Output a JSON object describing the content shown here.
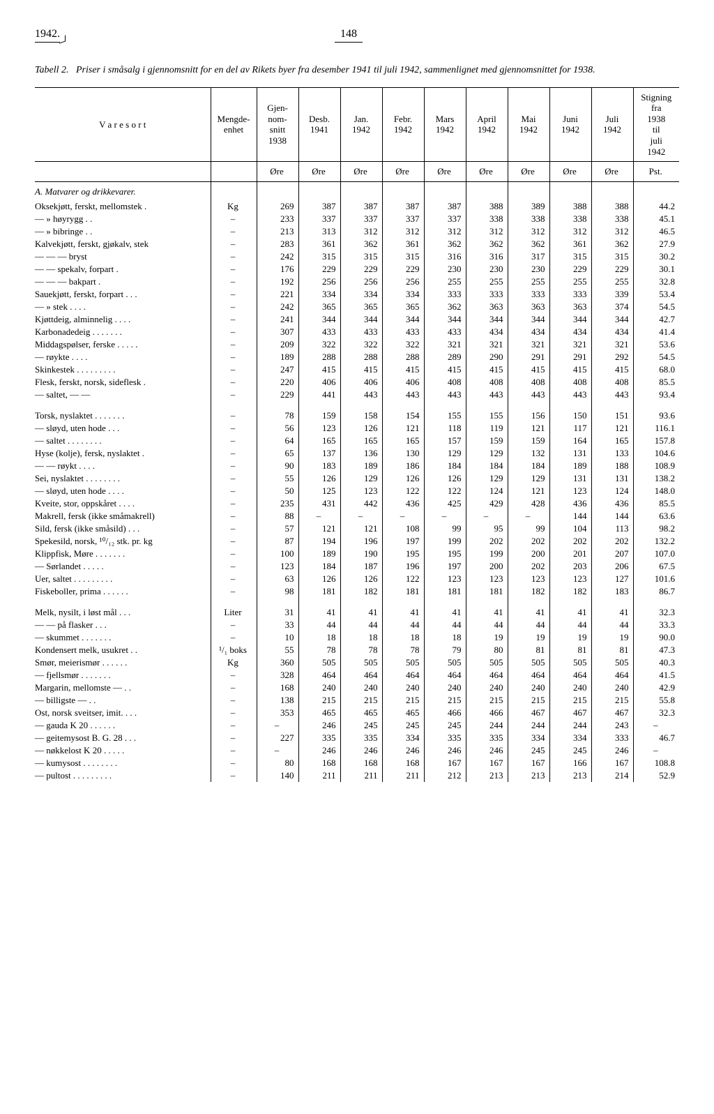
{
  "page": {
    "year": "1942.",
    "number": "148"
  },
  "caption": {
    "label": "Tabell 2.",
    "text": "Priser i småsalg i gjennomsnitt for en del av Rikets byer fra desember 1941 til juli 1942, sammenlignet med gjennomsnittet for 1938."
  },
  "columns": [
    "V a r e s o r t",
    "Mengde-\nenhet",
    "Gjen-\nnom-\nsnitt\n1938",
    "Desb.\n1941",
    "Jan.\n1942",
    "Febr.\n1942",
    "Mars\n1942",
    "April\n1942",
    "Mai\n1942",
    "Juni\n1942",
    "Juli\n1942",
    "Stigning\nfra\n1938\ntil\njuli\n1942"
  ],
  "unit_row": [
    "",
    "",
    "Øre",
    "Øre",
    "Øre",
    "Øre",
    "Øre",
    "Øre",
    "Øre",
    "Øre",
    "Øre",
    "Pst."
  ],
  "section_a": "A. Matvarer og drikkevarer.",
  "rows_block1": [
    [
      "Oksekjøtt, ferskt, mellomstek .",
      "Kg",
      "269",
      "387",
      "387",
      "387",
      "387",
      "388",
      "389",
      "388",
      "388",
      "44.2"
    ],
    [
      "—      »      høyrygg . .",
      "–",
      "233",
      "337",
      "337",
      "337",
      "337",
      "338",
      "338",
      "338",
      "338",
      "45.1"
    ],
    [
      "—      »      bibringe . .",
      "–",
      "213",
      "313",
      "312",
      "312",
      "312",
      "312",
      "312",
      "312",
      "312",
      "46.5"
    ],
    [
      "Kalvekjøtt, ferskt, gjøkalv, stek",
      "–",
      "283",
      "361",
      "362",
      "361",
      "362",
      "362",
      "362",
      "361",
      "362",
      "27.9"
    ],
    [
      "—      —      —      bryst",
      "–",
      "242",
      "315",
      "315",
      "315",
      "316",
      "316",
      "317",
      "315",
      "315",
      "30.2"
    ],
    [
      "—      — spekalv, forpart .",
      "–",
      "176",
      "229",
      "229",
      "229",
      "230",
      "230",
      "230",
      "229",
      "229",
      "30.1"
    ],
    [
      "—      —      —   bakpart .",
      "–",
      "192",
      "256",
      "256",
      "256",
      "255",
      "255",
      "255",
      "255",
      "255",
      "32.8"
    ],
    [
      "Sauekjøtt, ferskt, forpart . . .",
      "–",
      "221",
      "334",
      "334",
      "334",
      "333",
      "333",
      "333",
      "333",
      "339",
      "53.4"
    ],
    [
      "—      »      stek . . . .",
      "–",
      "242",
      "365",
      "365",
      "365",
      "362",
      "363",
      "363",
      "363",
      "374",
      "54.5"
    ],
    [
      "Kjøttdeig, alminnelig  . . . .",
      "–",
      "241",
      "344",
      "344",
      "344",
      "344",
      "344",
      "344",
      "344",
      "344",
      "42.7"
    ],
    [
      "Karbonadedeig  . . . . . . .",
      "–",
      "307",
      "433",
      "433",
      "433",
      "433",
      "434",
      "434",
      "434",
      "434",
      "41.4"
    ],
    [
      "Middagspølser, ferske . . . . .",
      "–",
      "209",
      "322",
      "322",
      "322",
      "321",
      "321",
      "321",
      "321",
      "321",
      "53.6"
    ],
    [
      "—         røykte  . . . .",
      "–",
      "189",
      "288",
      "288",
      "288",
      "289",
      "290",
      "291",
      "291",
      "292",
      "54.5"
    ],
    [
      "Skinkestek  . . . . . . . . .",
      "–",
      "247",
      "415",
      "415",
      "415",
      "415",
      "415",
      "415",
      "415",
      "415",
      "68.0"
    ],
    [
      "Flesk, ferskt, norsk, sideflesk .",
      "–",
      "220",
      "406",
      "406",
      "406",
      "408",
      "408",
      "408",
      "408",
      "408",
      "85.5"
    ],
    [
      "—   saltet,   —      —",
      "–",
      "229",
      "441",
      "443",
      "443",
      "443",
      "443",
      "443",
      "443",
      "443",
      "93.4"
    ]
  ],
  "rows_block2": [
    [
      "Torsk, nyslaktet . . . . . . .",
      "–",
      "78",
      "159",
      "158",
      "154",
      "155",
      "155",
      "156",
      "150",
      "151",
      "93.6"
    ],
    [
      "—   sløyd, uten hode . . .",
      "–",
      "56",
      "123",
      "126",
      "121",
      "118",
      "119",
      "121",
      "117",
      "121",
      "116.1"
    ],
    [
      "—   saltet . . . . . . . .",
      "–",
      "64",
      "165",
      "165",
      "165",
      "157",
      "159",
      "159",
      "164",
      "165",
      "157.8"
    ],
    [
      "Hyse (kolje), fersk, nyslaktet .",
      "–",
      "65",
      "137",
      "136",
      "130",
      "129",
      "129",
      "132",
      "131",
      "133",
      "104.6"
    ],
    [
      "—     —     røykt  . . . .",
      "–",
      "90",
      "183",
      "189",
      "186",
      "184",
      "184",
      "184",
      "189",
      "188",
      "108.9"
    ],
    [
      "Sei, nyslaktet . . . . . . . .",
      "–",
      "55",
      "126",
      "129",
      "126",
      "126",
      "129",
      "129",
      "131",
      "131",
      "138.2"
    ],
    [
      "—   sløyd, uten hode . . . .",
      "–",
      "50",
      "125",
      "123",
      "122",
      "122",
      "124",
      "121",
      "123",
      "124",
      "148.0"
    ],
    [
      "Kveite, stor, oppskåret . . . .",
      "–",
      "235",
      "431",
      "442",
      "436",
      "425",
      "429",
      "428",
      "436",
      "436",
      "85.5"
    ],
    [
      "Makrell, fersk (ikke småmakrell)",
      "–",
      "88",
      "–",
      "–",
      "–",
      "–",
      "–",
      "–",
      "144",
      "144",
      "63.6"
    ],
    [
      "Sild, fersk (ikke småsild) . . .",
      "–",
      "57",
      "121",
      "121",
      "108",
      "99",
      "95",
      "99",
      "104",
      "113",
      "98.2"
    ],
    [
      "Spekesild, norsk, ¹⁰/₁₂ stk. pr. kg",
      "–",
      "87",
      "194",
      "196",
      "197",
      "199",
      "202",
      "202",
      "202",
      "202",
      "132.2"
    ],
    [
      "Klippfisk, Møre . . . . . . .",
      "–",
      "100",
      "189",
      "190",
      "195",
      "195",
      "199",
      "200",
      "201",
      "207",
      "107.0"
    ],
    [
      "—      Sørlandet . . . . .",
      "–",
      "123",
      "184",
      "187",
      "196",
      "197",
      "200",
      "202",
      "203",
      "206",
      "67.5"
    ],
    [
      "Uer, saltet . . . . . . . . .",
      "–",
      "63",
      "126",
      "126",
      "122",
      "123",
      "123",
      "123",
      "123",
      "127",
      "101.6"
    ],
    [
      "Fiskeboller, prima . . . . . .",
      "–",
      "98",
      "181",
      "182",
      "181",
      "181",
      "181",
      "182",
      "182",
      "183",
      "86.7"
    ]
  ],
  "rows_block3": [
    [
      "Melk, nysilt, i løst mål  . . .",
      "Liter",
      "31",
      "41",
      "41",
      "41",
      "41",
      "41",
      "41",
      "41",
      "41",
      "32.3"
    ],
    [
      "—     —    på flasker  . . .",
      "–",
      "33",
      "44",
      "44",
      "44",
      "44",
      "44",
      "44",
      "44",
      "44",
      "33.3"
    ],
    [
      "—   skummet . . . . . . .",
      "–",
      "10",
      "18",
      "18",
      "18",
      "18",
      "19",
      "19",
      "19",
      "19",
      "90.0"
    ],
    [
      "Kondensert melk, usukret . .",
      "¹/₁ boks",
      "55",
      "78",
      "78",
      "78",
      "79",
      "80",
      "81",
      "81",
      "81",
      "47.3"
    ],
    [
      "Smør, meierismør . . . . . .",
      "Kg",
      "360",
      "505",
      "505",
      "505",
      "505",
      "505",
      "505",
      "505",
      "505",
      "40.3"
    ],
    [
      "—   fjellsmør . . . . . . .",
      "–",
      "328",
      "464",
      "464",
      "464",
      "464",
      "464",
      "464",
      "464",
      "464",
      "41.5"
    ],
    [
      "Margarin, mellomste  —   . .",
      "–",
      "168",
      "240",
      "240",
      "240",
      "240",
      "240",
      "240",
      "240",
      "240",
      "42.9"
    ],
    [
      "—      billigste   —   . .",
      "–",
      "138",
      "215",
      "215",
      "215",
      "215",
      "215",
      "215",
      "215",
      "215",
      "55.8"
    ],
    [
      "Ost, norsk sveitser, imit. . . .",
      "–",
      "353",
      "465",
      "465",
      "465",
      "466",
      "466",
      "467",
      "467",
      "467",
      "32.3"
    ],
    [
      "—   gauda K 20 . . . . . .",
      "–",
      "–",
      "246",
      "245",
      "245",
      "245",
      "244",
      "244",
      "244",
      "243",
      "–"
    ],
    [
      "—   geitemysost B. G. 28 . . .",
      "–",
      "227",
      "335",
      "335",
      "334",
      "335",
      "335",
      "334",
      "334",
      "333",
      "46.7"
    ],
    [
      "—   nøkkelost K 20 . . . . .",
      "–",
      "–",
      "246",
      "246",
      "246",
      "246",
      "246",
      "245",
      "245",
      "246",
      "–"
    ],
    [
      "—   kumysost . . . . . . . .",
      "–",
      "80",
      "168",
      "168",
      "168",
      "167",
      "167",
      "167",
      "166",
      "167",
      "108.8"
    ],
    [
      "—   pultost . . . . . . . . .",
      "–",
      "140",
      "211",
      "211",
      "211",
      "212",
      "213",
      "213",
      "213",
      "214",
      "52.9"
    ]
  ]
}
